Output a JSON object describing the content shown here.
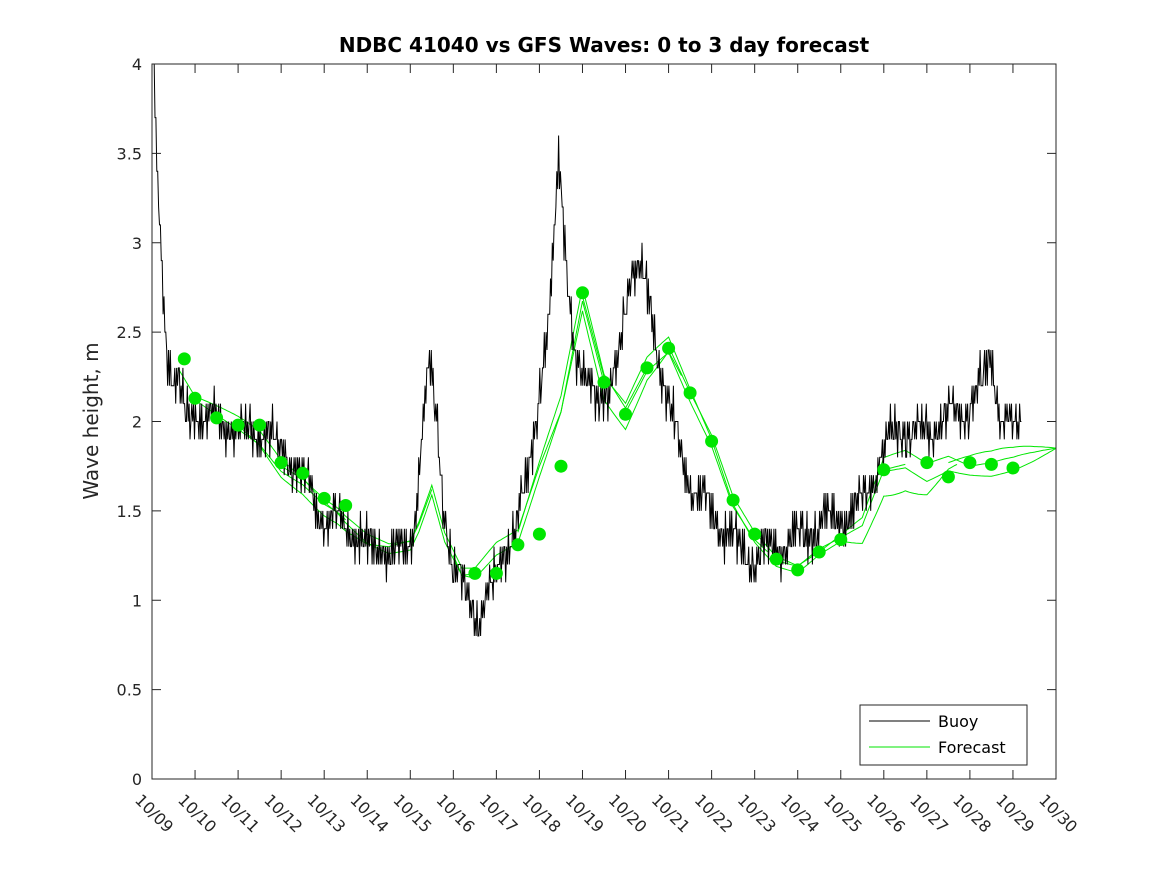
{
  "chart_data": {
    "type": "line",
    "title": "NDBC 41040 vs GFS Waves: 0 to 3 day forecast",
    "xlabel": "",
    "ylabel": "Wave height, m",
    "ylim": [
      0,
      4
    ],
    "xlim": [
      0,
      21
    ],
    "yticks": [
      0,
      0.5,
      1,
      1.5,
      2,
      2.5,
      3,
      3.5,
      4
    ],
    "yticklabels": [
      "0",
      "0.5",
      "1",
      "1.5",
      "2",
      "2.5",
      "3",
      "3.5",
      "4"
    ],
    "xticks": [
      0,
      1,
      2,
      3,
      4,
      5,
      6,
      7,
      8,
      9,
      10,
      11,
      12,
      13,
      14,
      15,
      16,
      17,
      18,
      19,
      20,
      21
    ],
    "xticklabels": [
      "10/09",
      "10/10",
      "10/11",
      "10/12",
      "10/13",
      "10/14",
      "10/15",
      "10/16",
      "10/17",
      "10/18",
      "10/19",
      "10/20",
      "10/21",
      "10/22",
      "10/23",
      "10/24",
      "10/25",
      "10/26",
      "10/27",
      "10/28",
      "10/29",
      "10/30"
    ],
    "legend": {
      "location": "bottom-right",
      "entries": [
        {
          "label": "Buoy",
          "color": "#000000"
        },
        {
          "label": "Forecast",
          "color": "#00e600"
        }
      ]
    },
    "buoy_anchors": {
      "x": [
        0.05,
        0.1,
        0.2,
        0.3,
        0.4,
        0.6,
        0.8,
        1.0,
        1.5,
        2.0,
        2.5,
        3.0,
        3.3,
        3.7,
        4.0,
        4.3,
        4.6,
        5.0,
        5.3,
        5.6,
        5.9,
        6.1,
        6.3,
        6.45,
        6.6,
        6.8,
        7.0,
        7.2,
        7.4,
        7.6,
        7.8,
        8.0,
        8.2,
        8.4,
        8.6,
        8.8,
        9.0,
        9.15,
        9.3,
        9.45,
        9.6,
        9.8,
        10.0,
        10.3,
        10.6,
        10.8,
        11.0,
        11.2,
        11.4,
        11.6,
        11.8,
        12.0,
        12.3,
        12.6,
        13.0,
        13.3,
        13.6,
        14.0,
        14.3,
        14.6,
        15.0,
        15.3,
        15.6,
        16.0,
        16.3,
        16.6,
        17.0,
        17.3,
        17.6,
        18.0,
        18.3,
        18.6,
        18.8,
        19.0,
        19.3,
        19.5,
        19.7,
        20.0,
        20.1,
        20.2
      ],
      "values": [
        3.9,
        3.5,
        3.0,
        2.6,
        2.3,
        2.2,
        2.0,
        2.05,
        2.0,
        1.95,
        1.95,
        1.85,
        1.75,
        1.6,
        1.45,
        1.45,
        1.4,
        1.3,
        1.3,
        1.25,
        1.3,
        1.45,
        2.0,
        2.3,
        2.05,
        1.5,
        1.15,
        1.1,
        1.0,
        0.9,
        1.0,
        1.15,
        1.3,
        1.35,
        1.55,
        1.8,
        2.2,
        2.4,
        2.8,
        3.5,
        3.0,
        2.4,
        2.2,
        2.2,
        2.1,
        2.3,
        2.7,
        2.9,
        2.8,
        2.6,
        2.35,
        2.1,
        1.8,
        1.6,
        1.5,
        1.4,
        1.3,
        1.25,
        1.3,
        1.3,
        1.35,
        1.4,
        1.45,
        1.45,
        1.5,
        1.6,
        1.85,
        1.95,
        1.95,
        1.95,
        2.0,
        2.05,
        2.05,
        2.1,
        2.2,
        2.35,
        2.05,
        1.95,
        1.95,
        2.0
      ]
    },
    "forecast_anchors": {
      "x": [
        0.6,
        1.0,
        1.5,
        2.0,
        2.5,
        3.0,
        3.5,
        4.0,
        4.3,
        4.5,
        5.0,
        5.5,
        6.0,
        6.2,
        6.5,
        6.8,
        7.2,
        7.5,
        8.0,
        8.5,
        9.0,
        9.5,
        10.0,
        10.5,
        11.0,
        11.5,
        12.0,
        12.5,
        13.0,
        13.5,
        14.0,
        14.5,
        15.0,
        15.5,
        16.0,
        16.5,
        17.0,
        17.5,
        18.0,
        18.5,
        19.0,
        19.5,
        20.0,
        20.5,
        21.0
      ],
      "values": [
        2.3,
        2.12,
        2.05,
        1.98,
        1.9,
        1.75,
        1.67,
        1.55,
        1.5,
        1.45,
        1.35,
        1.3,
        1.32,
        1.42,
        1.62,
        1.35,
        1.15,
        1.15,
        1.3,
        1.38,
        1.75,
        2.1,
        2.7,
        2.22,
        2.05,
        2.3,
        2.42,
        2.15,
        1.9,
        1.55,
        1.35,
        1.22,
        1.18,
        1.27,
        1.33,
        1.4,
        1.72,
        1.76,
        1.7,
        1.77,
        1.75,
        1.74,
        1.76,
        1.8,
        1.85
      ]
    },
    "forecast_dots": {
      "x": [
        0.75,
        1.0,
        1.5,
        2.0,
        2.5,
        3.0,
        3.5,
        4.0,
        4.5,
        7.5,
        8.0,
        8.5,
        9.0,
        9.5,
        10.0,
        10.5,
        11.0,
        11.5,
        12.0,
        12.5,
        13.0,
        13.5,
        14.0,
        14.5,
        15.0,
        15.5,
        16.0,
        17.0,
        18.0,
        18.5,
        19.0,
        19.5,
        20.0
      ],
      "values": [
        2.35,
        2.13,
        2.02,
        1.98,
        1.98,
        1.77,
        1.71,
        1.57,
        1.53,
        1.15,
        1.15,
        1.31,
        1.37,
        1.75,
        2.72,
        2.22,
        2.04,
        2.3,
        2.41,
        2.16,
        1.89,
        1.56,
        1.37,
        1.23,
        1.17,
        1.27,
        1.34,
        1.73,
        1.77,
        1.69,
        1.77,
        1.76,
        1.74
      ]
    },
    "forecast_runs": [
      {
        "start": 0.6,
        "end": 3.8,
        "offset": 0.05
      },
      {
        "start": 1.0,
        "end": 4.5,
        "offset": -0.03
      },
      {
        "start": 2.0,
        "end": 5.5,
        "offset": -0.08
      },
      {
        "start": 3.0,
        "end": 6.5,
        "offset": 0.02
      },
      {
        "start": 4.0,
        "end": 7.5,
        "offset": -0.04
      },
      {
        "start": 5.5,
        "end": 9.0,
        "offset": 0.03
      },
      {
        "start": 7.0,
        "end": 10.5,
        "offset": -0.06
      },
      {
        "start": 8.5,
        "end": 11.5,
        "offset": 0.05
      },
      {
        "start": 9.0,
        "end": 12.3,
        "offset": -0.1
      },
      {
        "start": 10.0,
        "end": 13.0,
        "offset": 0.06
      },
      {
        "start": 11.0,
        "end": 14.3,
        "offset": -0.04
      },
      {
        "start": 12.0,
        "end": 15.5,
        "offset": 0.03
      },
      {
        "start": 13.0,
        "end": 16.0,
        "offset": -0.03
      },
      {
        "start": 14.5,
        "end": 17.5,
        "offset": 0.02
      },
      {
        "start": 15.5,
        "end": 19.0,
        "offset": 0.08
      },
      {
        "start": 16.0,
        "end": 18.7,
        "offset": -0.15
      },
      {
        "start": 17.0,
        "end": 21.0,
        "offset": -0.05
      },
      {
        "start": 18.5,
        "end": 21.0,
        "offset": 0.1
      },
      {
        "start": 19.0,
        "end": 21.0,
        "offset": 0.04
      }
    ],
    "colors": {
      "buoy": "#000000",
      "forecast": "#00e600",
      "axes": "#262626",
      "background": "#ffffff"
    }
  }
}
